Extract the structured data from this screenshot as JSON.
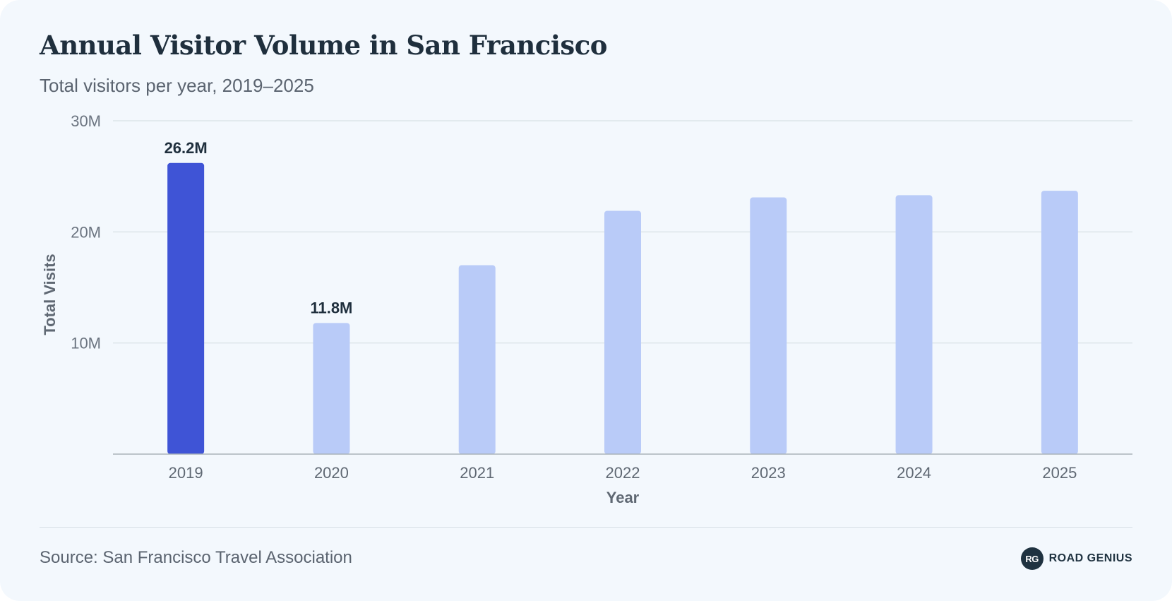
{
  "header": {
    "title": "Annual Visitor Volume in San Francisco",
    "subtitle": "Total visitors per year, 2019–2025"
  },
  "chart_data": {
    "type": "bar",
    "title": "Annual Visitor Volume in San Francisco",
    "subtitle": "Total visitors per year, 2019–2025",
    "xlabel": "Year",
    "ylabel": "Total Visits",
    "categories": [
      "2019",
      "2020",
      "2021",
      "2022",
      "2023",
      "2024",
      "2025"
    ],
    "values": [
      26.2,
      11.8,
      17.0,
      21.9,
      23.1,
      23.3,
      23.7
    ],
    "value_unit": "M",
    "ylim": [
      0,
      30
    ],
    "yticks": [
      10,
      20,
      30
    ],
    "ytick_labels": [
      "10M",
      "20M",
      "30M"
    ],
    "data_labels": [
      {
        "category": "2019",
        "text": "26.2M"
      },
      {
        "category": "2020",
        "text": "11.8M"
      }
    ],
    "grid": true,
    "highlight_category": "2019",
    "colors": {
      "highlight": "#3f54d6",
      "bar": "#b9cbf8",
      "grid": "#dde5ea",
      "axis": "#a9b2ba"
    }
  },
  "footer": {
    "source": "Source: San Francisco Travel Association",
    "brand_mark": "RG",
    "brand_name": "ROAD GENIUS"
  }
}
